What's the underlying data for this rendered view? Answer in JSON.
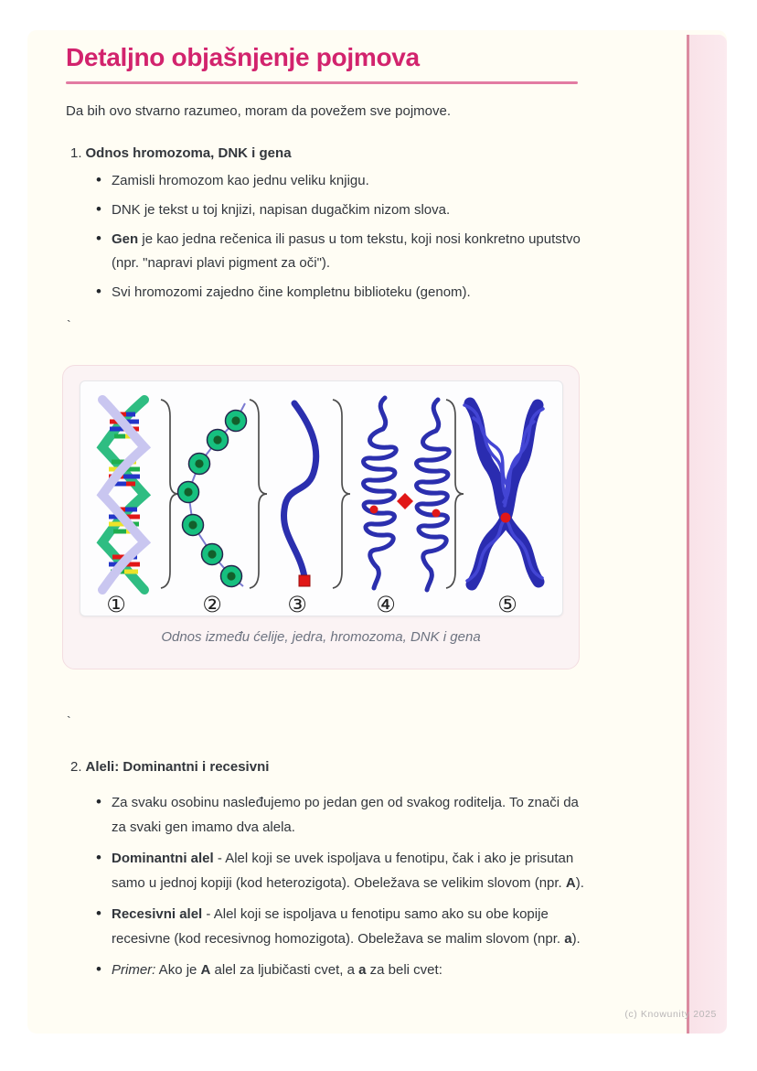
{
  "doc": {
    "title": "Detaljno objašnjenje pojmova",
    "intro": "Da bih ovo stvarno razumeo, moram da povežem sve pojmove.",
    "stray_mark_1": "`",
    "stray_mark_2": "`",
    "watermark": "(c) Knowunity 2025"
  },
  "colors": {
    "accent_pink": "#d2236d",
    "underline_pink": "#e27ba2",
    "stripe_band": "#fae4ea",
    "stripe_line": "#db8ba0",
    "page_bg": "#fffdf4",
    "body_text": "#32363c",
    "caption_gray": "#6d7380",
    "figure_blue": "#2b2fae",
    "figure_green": "#2fbd82",
    "figure_lavender": "#c9c6f0",
    "figure_red": "#e11717"
  },
  "sections": [
    {
      "number": "1.",
      "heading": "Odnos hromozoma, DNK i gena",
      "bullets": [
        {
          "parts": [
            {
              "t": "Zamisli hromozom kao jednu veliku knjigu."
            }
          ]
        },
        {
          "parts": [
            {
              "t": "DNK je tekst u toj knjizi, napisan dugačkim nizom slova."
            }
          ]
        },
        {
          "parts": [
            {
              "t": "Gen",
              "b": 1
            },
            {
              "t": " je kao jedna rečenica ili pasus u tom tekstu, koji nosi konkretno uputstvo (npr. \"napravi plavi pigment za oči\")."
            }
          ]
        },
        {
          "parts": [
            {
              "t": "Svi hromozomi zajedno čine kompletnu biblioteku (genom)."
            }
          ]
        }
      ]
    },
    {
      "number": "2.",
      "heading": "Aleli: Dominantni i recesivni",
      "bullets": [
        {
          "parts": [
            {
              "t": "Za svaku osobinu nasleđujemo po jedan gen od svakog roditelja. To znači da za svaki gen imamo dva alela."
            }
          ]
        },
        {
          "parts": [
            {
              "t": "Dominantni alel",
              "b": 1
            },
            {
              "t": " - Alel koji se uvek ispoljava u fenotipu, čak i ako je prisutan samo u jednoj kopiji (kod heterozigota). Obeležava se velikim slovom (npr. "
            },
            {
              "t": "A",
              "b": 1
            },
            {
              "t": ")."
            }
          ]
        },
        {
          "parts": [
            {
              "t": "Recesivni alel",
              "b": 1
            },
            {
              "t": " - Alel koji se ispoljava u fenotipu samo ako su obe kopije recesivne (kod recesivnog homozigota). Obeležava se malim slovom (npr. "
            },
            {
              "t": "a",
              "b": 1
            },
            {
              "t": ")."
            }
          ]
        },
        {
          "parts": [
            {
              "t": "Primer:",
              "i": 1
            },
            {
              "t": " Ako je "
            },
            {
              "t": "A",
              "b": 1
            },
            {
              "t": " alel za ljubičasti cvet, a "
            },
            {
              "t": "a",
              "b": 1
            },
            {
              "t": " za beli cvet:"
            }
          ]
        }
      ]
    }
  ],
  "figure": {
    "caption": "Odnos između ćelije, jedra, hromozoma, DNK i gena",
    "stage_labels": [
      "①",
      "②",
      "③",
      "④",
      "⑤"
    ]
  }
}
